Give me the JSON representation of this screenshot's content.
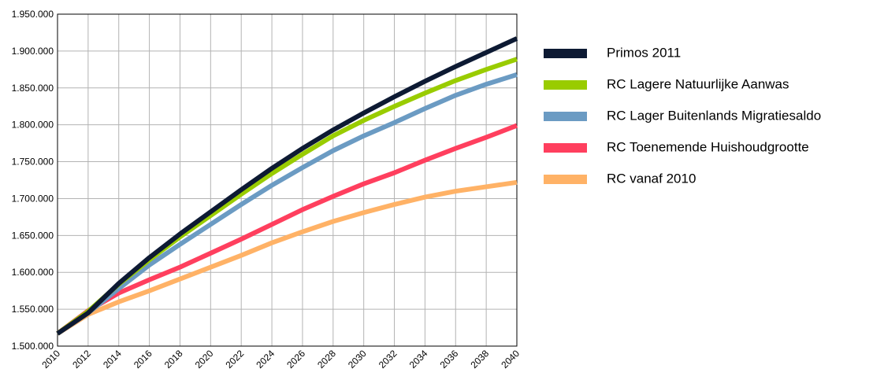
{
  "chart_data": {
    "type": "line",
    "x": [
      2010,
      2012,
      2014,
      2016,
      2018,
      2020,
      2022,
      2024,
      2026,
      2028,
      2030,
      2032,
      2034,
      2036,
      2038,
      2040
    ],
    "xlim": [
      2010,
      2040
    ],
    "xticks": [
      2010,
      2012,
      2014,
      2016,
      2018,
      2020,
      2022,
      2024,
      2026,
      2028,
      2030,
      2032,
      2034,
      2036,
      2038,
      2040
    ],
    "ylim": [
      1500000,
      1950000
    ],
    "yticks": [
      {
        "value": 1500000,
        "label": "1.500.000"
      },
      {
        "value": 1550000,
        "label": "1.550.000"
      },
      {
        "value": 1600000,
        "label": "1.600.000"
      },
      {
        "value": 1650000,
        "label": "1.650.000"
      },
      {
        "value": 1700000,
        "label": "1.700.000"
      },
      {
        "value": 1750000,
        "label": "1.750.000"
      },
      {
        "value": 1800000,
        "label": "1.800.000"
      },
      {
        "value": 1850000,
        "label": "1.850.000"
      },
      {
        "value": 1900000,
        "label": "1.900.000"
      },
      {
        "value": 1950000,
        "label": "1.950.000"
      }
    ],
    "grid": true,
    "legend": "right",
    "series": [
      {
        "name": "Primos 2011",
        "color": "#0d1a33",
        "values": [
          1517000,
          1545000,
          1585000,
          1620000,
          1652000,
          1682000,
          1712000,
          1741000,
          1768000,
          1793000,
          1816000,
          1838000,
          1859000,
          1879000,
          1898000,
          1917000
        ]
      },
      {
        "name": "RC Lagere Natuurlijke Aanwas",
        "color": "#99cc00",
        "values": [
          1517000,
          1547000,
          1584000,
          1617000,
          1648000,
          1677000,
          1706000,
          1734000,
          1760000,
          1785000,
          1806000,
          1825000,
          1843000,
          1860000,
          1875000,
          1889000
        ]
      },
      {
        "name": "RC Lager Buitenlands Migratiesaldo",
        "color": "#6b9bc3",
        "values": [
          1517000,
          1545000,
          1578000,
          1610000,
          1638000,
          1665000,
          1692000,
          1718000,
          1742000,
          1765000,
          1785000,
          1803000,
          1822000,
          1840000,
          1855000,
          1868000
        ]
      },
      {
        "name": "RC Toenemende Huishoudgrootte",
        "color": "#ff3f5e",
        "values": [
          1517000,
          1548000,
          1572000,
          1590000,
          1607000,
          1626000,
          1645000,
          1665000,
          1685000,
          1703000,
          1720000,
          1735000,
          1752000,
          1768000,
          1783000,
          1799000
        ]
      },
      {
        "name": "RC vanaf 2010",
        "color": "#ffb266",
        "values": [
          1517000,
          1543000,
          1560000,
          1575000,
          1591000,
          1607000,
          1623000,
          1640000,
          1655000,
          1669000,
          1681000,
          1692000,
          1702000,
          1710000,
          1716000,
          1722000
        ]
      }
    ]
  }
}
